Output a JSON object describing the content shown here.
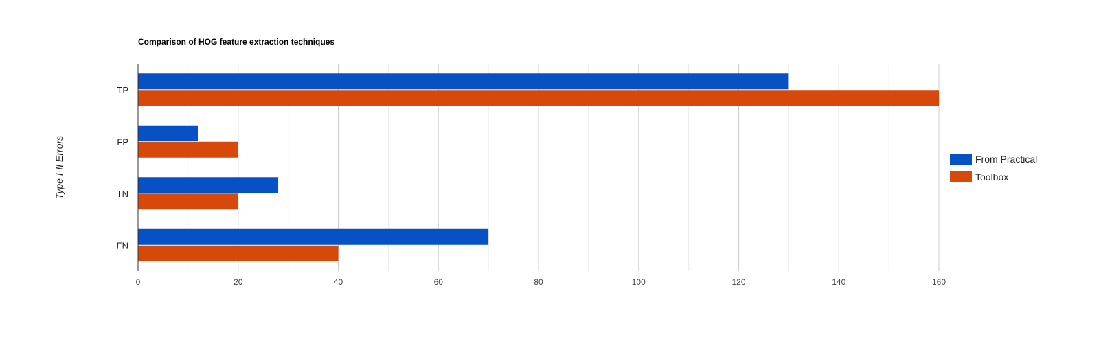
{
  "chart_data": {
    "type": "bar",
    "orientation": "horizontal",
    "title": "Comparison of HOG feature extraction techniques",
    "xlabel": "",
    "ylabel": "Type I-II Errors",
    "categories": [
      "TP",
      "FP",
      "TN",
      "FN"
    ],
    "series": [
      {
        "name": "From Practical",
        "values": [
          130,
          12,
          28,
          70
        ],
        "color": "#0652c5"
      },
      {
        "name": "Toolbox",
        "values": [
          160,
          20,
          20,
          40
        ],
        "color": "#d6490a"
      }
    ],
    "xlim": [
      0,
      160
    ],
    "x_ticks": [
      0,
      20,
      40,
      60,
      80,
      100,
      120,
      140,
      160
    ],
    "grid": true,
    "legend": "right"
  }
}
